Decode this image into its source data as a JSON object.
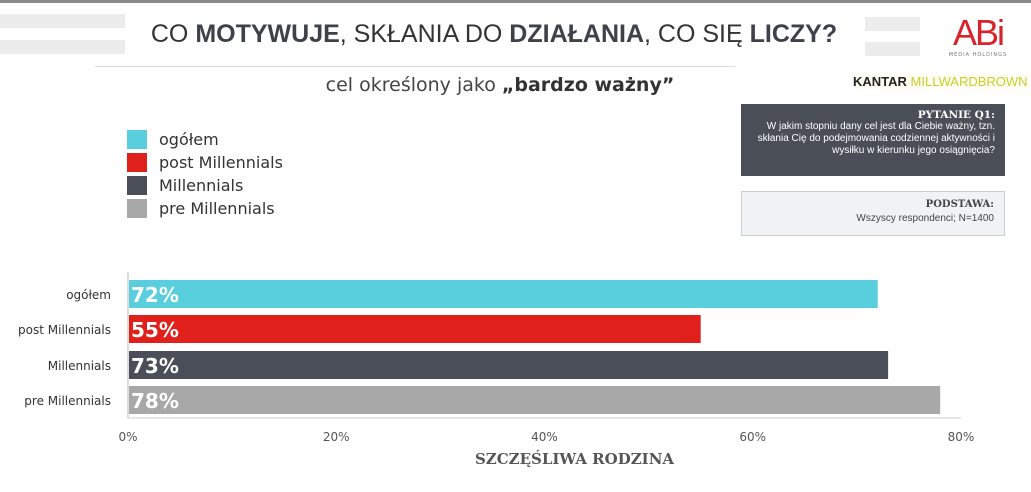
{
  "header": {
    "title_parts": [
      {
        "t": "CO ",
        "b": false
      },
      {
        "t": "MOTYWUJE",
        "b": true
      },
      {
        "t": ", SKŁANIA DO ",
        "b": false
      },
      {
        "t": "DZIAŁANIA",
        "b": true
      },
      {
        "t": ", CO SIĘ ",
        "b": false
      },
      {
        "t": "LICZY?",
        "b": true
      }
    ],
    "subtitle_plain": "cel określony jako ",
    "subtitle_bold": "„bardzo ważny”"
  },
  "logos": {
    "abi": "ABi",
    "abi_sub": "MEDIA HOLDINGS",
    "kantar": "KANTAR",
    "millward": "MILLWARDBROWN"
  },
  "question": {
    "heading": "PYTANIE Q1:",
    "text": "W jakim stopniu dany cel jest dla Ciebie ważny, tzn. skłania Cię do podejmowania codziennej aktywności i wysiłku w kierunku jego osiągnięcia?"
  },
  "base": {
    "heading": "PODSTAWA:",
    "text": "Wszyscy respondenci; N=1400"
  },
  "chart_data": {
    "type": "bar",
    "orientation": "horizontal",
    "categories": [
      "ogółem",
      "post Millennials",
      "Millennials",
      "pre Millennials"
    ],
    "values": [
      72,
      55,
      73,
      78
    ],
    "data_labels": [
      "72%",
      "55%",
      "73%",
      "78%"
    ],
    "colors": [
      "#59cedd",
      "#e0211b",
      "#4a4e58",
      "#a8a8a8"
    ],
    "xlabel": "SZCZĘŚLIWA RODZINA",
    "xlim": [
      0,
      80
    ],
    "xticks": [
      "0%",
      "20%",
      "40%",
      "60%",
      "80%"
    ],
    "xtick_values": [
      0,
      20,
      40,
      60,
      80
    ],
    "grid": false,
    "legend": {
      "placement": "top-left",
      "entries": [
        "ogółem",
        "post Millennials",
        "Millennials",
        "pre Millennials"
      ]
    }
  }
}
